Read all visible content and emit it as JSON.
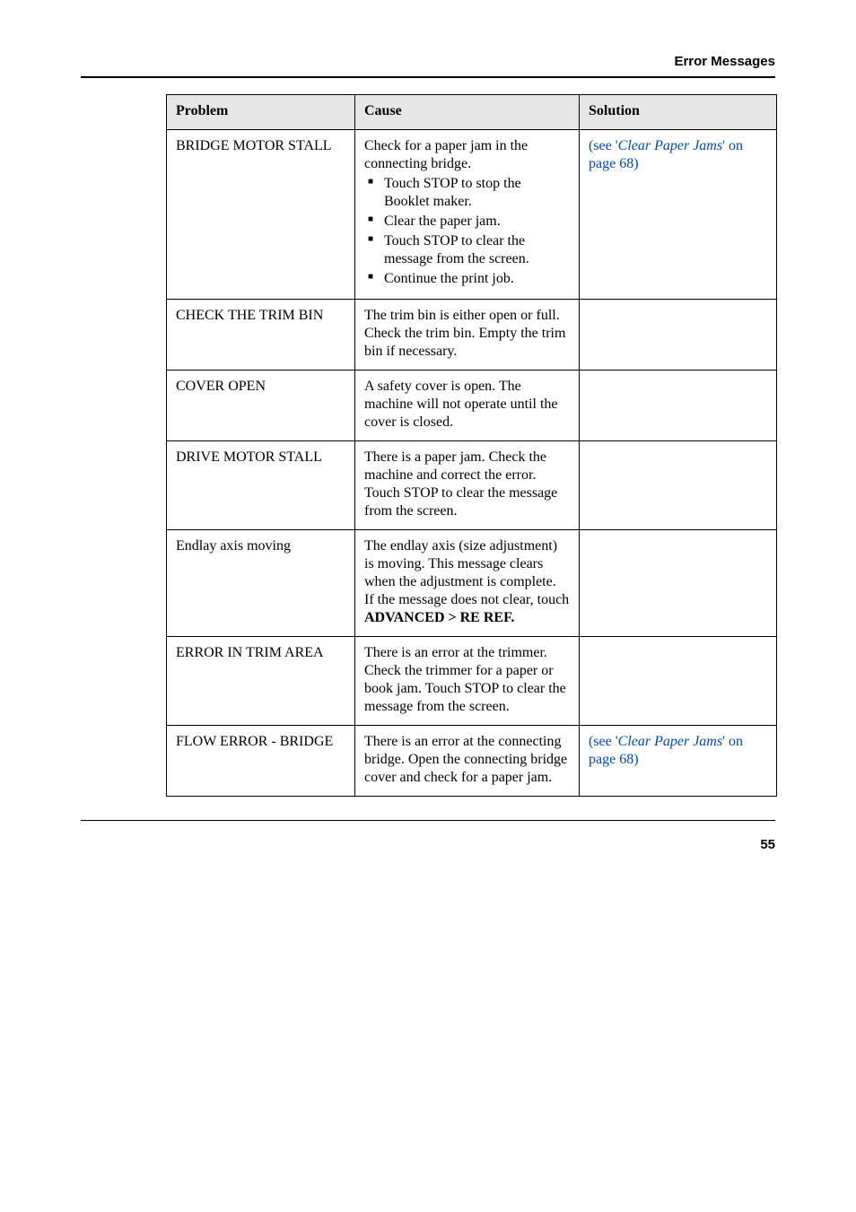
{
  "header": {
    "title": "Error Messages"
  },
  "columns": {
    "problem": "Problem",
    "cause": "Cause",
    "solution": "Solution"
  },
  "rows": {
    "r0": {
      "problem": "BRIDGE MOTOR STALL",
      "cause_intro": "Check for a paper jam in the connecting bridge.",
      "bullets": {
        "b0": "Touch STOP to stop the Booklet maker.",
        "b1": "Clear the paper jam.",
        "b2": "Touch STOP to clear the message from the screen.",
        "b3": "Continue the print job."
      },
      "solution_prefix": "(see '",
      "solution_link": "Clear Paper Jams",
      "solution_mid": "' ",
      "solution_link2": "on page 68",
      "solution_suffix": ")"
    },
    "r1": {
      "problem": "CHECK THE TRIM BIN",
      "cause": "The trim bin is either open or full. Check the trim bin. Empty the trim bin if necessary."
    },
    "r2": {
      "problem": "COVER OPEN",
      "cause": "A safety cover is open. The machine will not operate until the cover is closed."
    },
    "r3": {
      "problem": "DRIVE MOTOR STALL",
      "cause": "There is a paper jam. Check the machine and correct the error. Touch STOP to clear the message from the screen."
    },
    "r4": {
      "problem": "Endlay axis moving",
      "cause_line1": "The endlay axis (size adjustment) is moving. This message clears when the adjustment is complete.",
      "cause_line2": "If the message does not clear, touch ",
      "cause_bold": "ADVANCED > RE REF."
    },
    "r5": {
      "problem": "ERROR IN TRIM AREA",
      "cause": "There is an error at the trimmer.\nCheck the trimmer for a paper or book jam. Touch STOP to clear the message from the screen."
    },
    "r6": {
      "problem": "FLOW ERROR - BRIDGE",
      "cause": "There is an error at the connecting bridge. Open the connecting bridge cover and check for a paper jam.",
      "solution_prefix": "(see '",
      "solution_link": "Clear Paper Jams",
      "solution_mid": "' ",
      "solution_link2": "on page 68",
      "solution_suffix": ")"
    }
  },
  "footer": {
    "page": "55"
  },
  "colors": {
    "link": "#0049b5",
    "header_bg": "#e6e6e6"
  }
}
